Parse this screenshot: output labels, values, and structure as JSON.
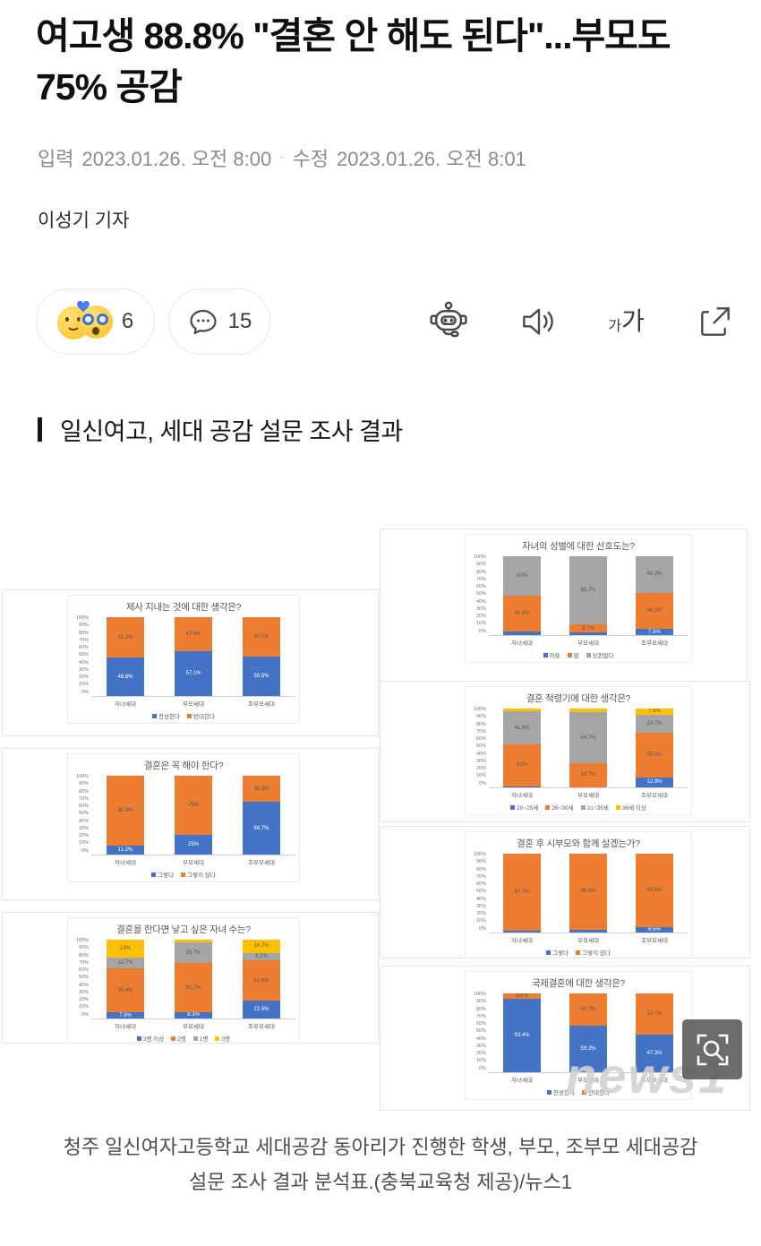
{
  "article": {
    "title": "여고생 88.8% \"결혼 안 해도 된다\"...부모도 75% 공감",
    "byline": {
      "published_label": "입력",
      "published_value": "2023.01.26. 오전 8:00",
      "separator": "·",
      "modified_label": "수정",
      "modified_value": "2023.01.26. 오전 8:01"
    },
    "reporter": "이성기 기자",
    "section_heading": "일신여고, 세대 공감 설문 조사 결과",
    "caption": "청주 일신여자고등학교 세대공감 동아리가 진행한 학생, 부모, 조부모 세대공감 설문 조사 결과 분석표.(충북교육청 제공)/뉴스1"
  },
  "reactions": {
    "emoji_count": "6",
    "comment_count": "15"
  },
  "toolbar": {
    "icons": [
      "robot-tts",
      "speaker",
      "font-size",
      "share"
    ],
    "font_small": "가",
    "font_big": "가"
  },
  "watermark": {
    "text": "news1"
  },
  "colors": {
    "bar_blue": "#4472C4",
    "bar_orange": "#ED7D31",
    "bar_gray": "#A5A5A5",
    "bar_yellow": "#FFC000",
    "box_border": "#e3e3e3",
    "chart_text": "#595959"
  },
  "chart_data": [
    {
      "type": "bar",
      "stacked": true,
      "title": "제사 지내는 것에 대한 생각은?",
      "categories": [
        "자녀세대",
        "부모세대",
        "조부모세대"
      ],
      "series": [
        {
          "name": "찬성한다",
          "color": "#4472C4",
          "values": [
            48.8,
            57.1,
            50.5
          ]
        },
        {
          "name": "반대한다",
          "color": "#ED7D31",
          "values": [
            51.2,
            42.9,
            49.5
          ]
        }
      ],
      "ylabel": "",
      "xlabel": "",
      "ylim": [
        0,
        100
      ],
      "ytick_step": 10,
      "legend_position": "bottom"
    },
    {
      "type": "bar",
      "stacked": true,
      "title": "결혼은 꼭 해야 한다?",
      "categories": [
        "자녀세대",
        "부모세대",
        "조부모세대"
      ],
      "series": [
        {
          "name": "그렇다",
          "color": "#4472C4",
          "values": [
            11.2,
            25,
            66.7
          ]
        },
        {
          "name": "그렇지 않다",
          "color": "#ED7D31",
          "values": [
            88.8,
            75,
            33.3
          ]
        }
      ],
      "ylabel": "",
      "xlabel": "",
      "ylim": [
        0,
        100
      ],
      "ytick_step": 10,
      "legend_position": "bottom"
    },
    {
      "type": "bar",
      "stacked": true,
      "title": "결혼을 한다면 낳고 싶은 자녀 수는?",
      "categories": [
        "자녀세대",
        "부모세대",
        "조부모세대"
      ],
      "series": [
        {
          "name": "3명 이상",
          "color": "#4472C4",
          "values": [
            7.9,
            8.3,
            22.5
          ]
        },
        {
          "name": "2명",
          "color": "#ED7D31",
          "values": [
            55.4,
            61.7,
            51.6
          ]
        },
        {
          "name": "1명",
          "color": "#A5A5A5",
          "values": [
            13.7,
            26.7,
            9.2
          ]
        },
        {
          "name": "0명",
          "color": "#FFC000",
          "values": [
            23.0,
            3.3,
            16.7
          ]
        }
      ],
      "ylabel": "",
      "xlabel": "",
      "ylim": [
        0,
        100
      ],
      "ytick_step": 10,
      "legend_position": "bottom"
    },
    {
      "type": "bar",
      "stacked": true,
      "title": "자녀의 성별에 대한 선호도는?",
      "categories": [
        "자녀세대",
        "부모세대",
        "조부모세대"
      ],
      "series": [
        {
          "name": "아들",
          "color": "#4472C4",
          "values": [
            4.4,
            3.6,
            7.5
          ]
        },
        {
          "name": "딸",
          "color": "#ED7D31",
          "values": [
            45.6,
            9.7,
            46.3
          ]
        },
        {
          "name": "상관없다",
          "color": "#A5A5A5",
          "values": [
            50.0,
            86.7,
            46.2
          ]
        }
      ],
      "ylabel": "",
      "xlabel": "",
      "ylim": [
        0,
        100
      ],
      "ytick_step": 10,
      "legend_position": "bottom"
    },
    {
      "type": "bar",
      "stacked": true,
      "title": "결혼 적령기에 대한 생각은?",
      "categories": [
        "자녀세대",
        "부모세대",
        "조부모세대"
      ],
      "series": [
        {
          "name": "20~25세",
          "color": "#4472C4",
          "values": [
            1.7,
            0,
            12.9
          ]
        },
        {
          "name": "26~30세",
          "color": "#ED7D31",
          "values": [
            53.0,
            30.7,
            55.9
          ]
        },
        {
          "name": "31~35세",
          "color": "#A5A5A5",
          "values": [
            41.8,
            64.7,
            23.7
          ]
        },
        {
          "name": "36세 이상",
          "color": "#FFC000",
          "values": [
            3.5,
            4.6,
            7.5
          ]
        }
      ],
      "ylabel": "",
      "xlabel": "",
      "ylim": [
        0,
        100
      ],
      "ytick_step": 10,
      "legend_position": "bottom"
    },
    {
      "type": "bar",
      "stacked": true,
      "title": "결혼 후 시부모와 함께 살겠는가?",
      "categories": [
        "자녀세대",
        "부모세대",
        "조부모세대"
      ],
      "series": [
        {
          "name": "그렇다",
          "color": "#4472C4",
          "values": [
            2.7,
            3.6,
            6.5
          ]
        },
        {
          "name": "그렇지 않다",
          "color": "#ED7D31",
          "values": [
            97.3,
            96.4,
            93.5
          ]
        }
      ],
      "ylabel": "",
      "xlabel": "",
      "ylim": [
        0,
        100
      ],
      "ytick_step": 10,
      "legend_position": "bottom"
    },
    {
      "type": "bar",
      "stacked": true,
      "title": "국제결혼에 대한 생각은?",
      "categories": [
        "자녀세대",
        "부모세대",
        "조부모세대"
      ],
      "series": [
        {
          "name": "찬성한다",
          "color": "#4472C4",
          "values": [
            93.4,
            59.3,
            47.3
          ]
        },
        {
          "name": "반대한다",
          "color": "#ED7D31",
          "values": [
            6.6,
            40.7,
            52.7
          ]
        }
      ],
      "ylabel": "",
      "xlabel": "",
      "ylim": [
        0,
        100
      ],
      "ytick_step": 10,
      "legend_position": "bottom"
    }
  ]
}
